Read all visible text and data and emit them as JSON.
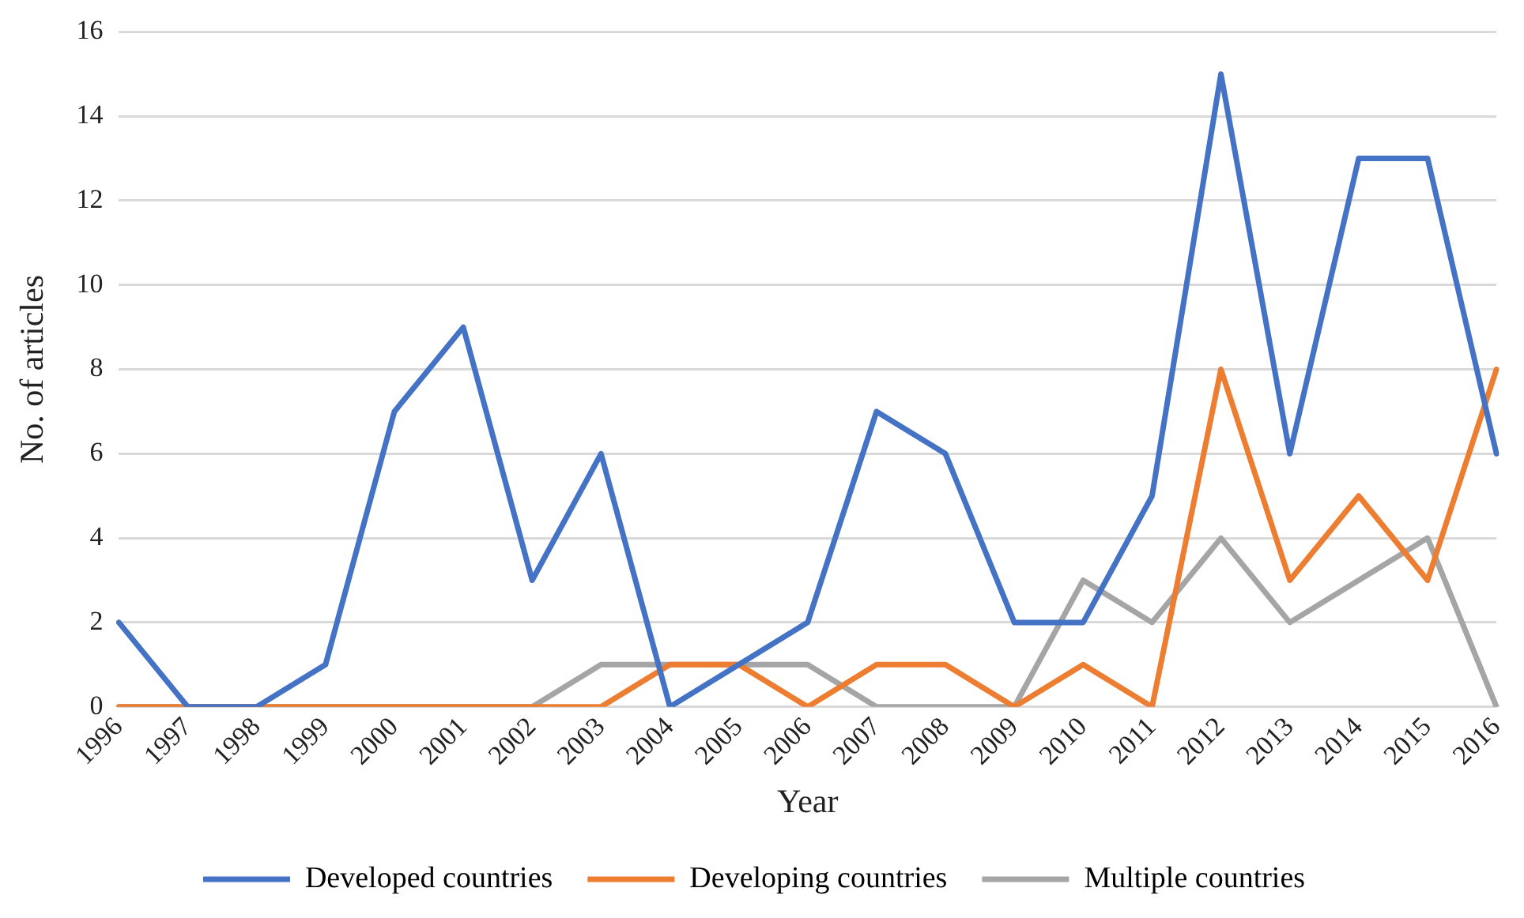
{
  "chart_data": {
    "type": "line",
    "xlabel": "Year",
    "ylabel": "No. of articles",
    "categories": [
      "1996",
      "1997",
      "1998",
      "1999",
      "2000",
      "2001",
      "2002",
      "2003",
      "2004",
      "2005",
      "2006",
      "2007",
      "2008",
      "2009",
      "2010",
      "2011",
      "2012",
      "2013",
      "2014",
      "2015",
      "2016"
    ],
    "series": [
      {
        "name": "Developed countries",
        "color": "#4472c4",
        "values": [
          2,
          0,
          0,
          1,
          7,
          9,
          3,
          6,
          0,
          1,
          2,
          7,
          6,
          2,
          2,
          5,
          15,
          6,
          13,
          13,
          6
        ]
      },
      {
        "name": "Developing countries",
        "color": "#ed7d31",
        "values": [
          0,
          0,
          0,
          0,
          0,
          0,
          0,
          0,
          1,
          1,
          0,
          1,
          1,
          0,
          1,
          0,
          8,
          3,
          5,
          3,
          8
        ]
      },
      {
        "name": "Multiple countries",
        "color": "#a5a5a5",
        "values": [
          0,
          0,
          0,
          0,
          0,
          0,
          0,
          1,
          1,
          1,
          1,
          0,
          0,
          0,
          3,
          2,
          4,
          2,
          3,
          4,
          0
        ]
      }
    ],
    "ylim": [
      0,
      16
    ],
    "yticks": [
      0,
      2,
      4,
      6,
      8,
      10,
      12,
      14,
      16
    ],
    "grid": "y",
    "legend": "bottom",
    "marker": "none",
    "line_style": "solid"
  }
}
